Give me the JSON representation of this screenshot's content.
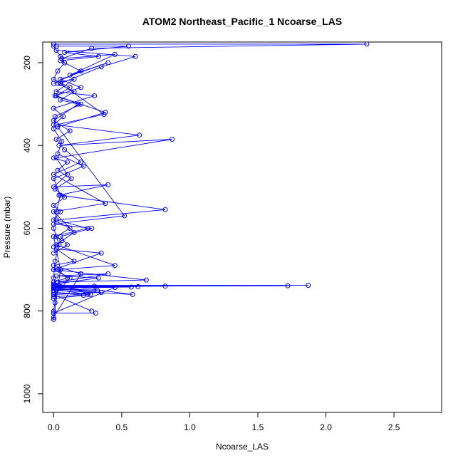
{
  "chart_data": {
    "type": "line",
    "title": "ATOM2 Northeast_Pacific_1 Ncoarse_LAS",
    "xlabel": "Ncoarse_LAS",
    "ylabel": "Pressure (mbar)",
    "xlim": [
      -0.08,
      2.85
    ],
    "ylim": [
      1045,
      150
    ],
    "y_inverted": true,
    "x_ticks": [
      "0.0",
      "0.5",
      "1.0",
      "1.5",
      "2.0",
      "2.5"
    ],
    "y_ticks": [
      "200",
      "400",
      "600",
      "800",
      "1000"
    ],
    "grid": false,
    "legend": "none",
    "series_color": "#0000ff",
    "series": [
      {
        "x": [
          0.0,
          0.05,
          0.08,
          0.03,
          0.0,
          0.12,
          0.02,
          0.2,
          0.01,
          0.0,
          0.06,
          0.03,
          0.22,
          0.0,
          0.05,
          0.02,
          0.0,
          0.04,
          0.01,
          0.0,
          0.02,
          0.0,
          0.01,
          0.0,
          0.0
        ],
        "y": [
          160,
          185,
          200,
          220,
          240,
          260,
          280,
          300,
          330,
          360,
          390,
          420,
          450,
          480,
          520,
          560,
          600,
          640,
          680,
          720,
          740,
          760,
          780,
          800,
          820
        ]
      },
      {
        "x": [
          0.02,
          0.6,
          0.35,
          0.05,
          0.37,
          0.02,
          0.63,
          0.04,
          0.87,
          0.02,
          0.1,
          0.0,
          0.4,
          0.04,
          0.82,
          0.02,
          0.25,
          0.0,
          0.05,
          0.0
        ],
        "y": [
          170,
          185,
          210,
          250,
          325,
          350,
          375,
          400,
          385,
          430,
          470,
          500,
          495,
          520,
          555,
          580,
          600,
          620,
          700,
          820
        ]
      },
      {
        "x": [
          0.0,
          2.3,
          0.28,
          0.06,
          0.45,
          0.12,
          0.4,
          0.05,
          0.2,
          0.01,
          0.38,
          0.03,
          0.52,
          0.0,
          0.28,
          0.05,
          0.1,
          0.0
        ],
        "y": [
          155,
          155,
          165,
          190,
          180,
          230,
          200,
          240,
          260,
          280,
          320,
          355,
          570,
          590,
          600,
          620,
          640,
          660
        ]
      },
      {
        "x": [
          0.03,
          0.15,
          0.05,
          0.18,
          0.0,
          0.12,
          0.02,
          0.08,
          0.2,
          0.0,
          0.38,
          0.0,
          0.15,
          0.02,
          0.45,
          0.03,
          0.1,
          0.0,
          0.27,
          0.0
        ],
        "y": [
          250,
          270,
          290,
          300,
          340,
          365,
          385,
          410,
          440,
          470,
          540,
          560,
          610,
          640,
          690,
          700,
          720,
          730,
          760,
          770
        ]
      },
      {
        "x": [
          0.0,
          0.68,
          0.03,
          0.4,
          0.02,
          0.33,
          0.0,
          0.58,
          0.0,
          0.3,
          0.0,
          0.35,
          0.0,
          0.28
        ],
        "y": [
          700,
          725,
          730,
          710,
          715,
          720,
          735,
          760,
          750,
          740,
          745,
          755,
          760,
          800
        ]
      },
      {
        "x": [
          0.0,
          1.87,
          0.0,
          1.72,
          0.0,
          0.82,
          0.0,
          0.62,
          0.0,
          0.57,
          0.0,
          0.45,
          0.0,
          0.31
        ],
        "y": [
          738,
          738,
          739,
          739,
          740,
          740,
          741,
          741,
          742,
          742,
          743,
          743,
          805,
          805
        ]
      },
      {
        "x": [
          0.0,
          0.32,
          0.02,
          0.25,
          0.0,
          0.22,
          0.0,
          0.12,
          0.0,
          0.35,
          0.02,
          0.15,
          0.0,
          0.2,
          0.0
        ],
        "y": [
          745,
          750,
          748,
          760,
          755,
          762,
          765,
          720,
          700,
          660,
          650,
          680,
          690,
          710,
          815
        ]
      },
      {
        "x": [
          0.02,
          0.55,
          0.08,
          0.33,
          0.05,
          0.2,
          0.0,
          0.15,
          0.02,
          0.3,
          0.0,
          0.07,
          0.0
        ],
        "y": [
          160,
          160,
          175,
          185,
          195,
          220,
          250,
          240,
          270,
          280,
          310,
          330,
          350
        ]
      },
      {
        "x": [
          0.0,
          0.1,
          0.03,
          0.13,
          0.01,
          0.08,
          0.0,
          0.05,
          0.0,
          0.12,
          0.02,
          0.06,
          0.0
        ],
        "y": [
          430,
          440,
          460,
          480,
          505,
          525,
          545,
          560,
          580,
          600,
          620,
          630,
          645
        ]
      }
    ]
  }
}
